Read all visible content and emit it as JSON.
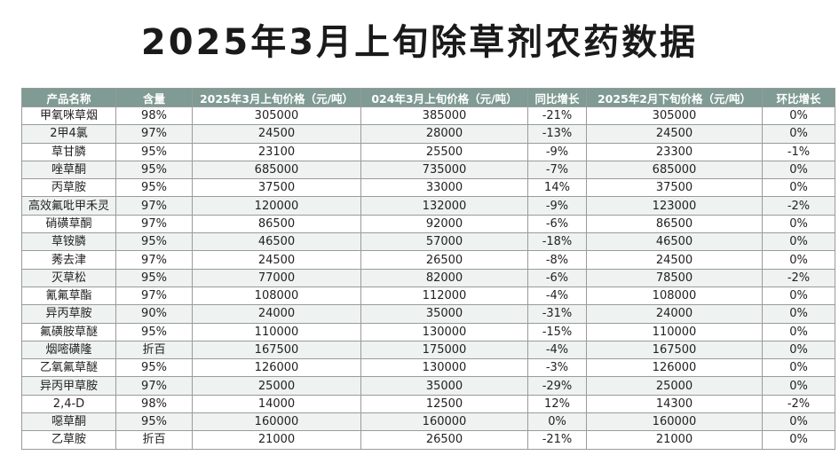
{
  "title": "2025年3月上旬除草剂农药数据",
  "table": {
    "headers": [
      "产品名称",
      "含量",
      "2025年3月上旬价格（元/吨）",
      "024年3月上旬价格（元/吨）",
      "同比增长",
      "2025年2月下旬价格（元/吨）",
      "环比增长"
    ],
    "rows": [
      [
        "甲氧咪草烟",
        "98%",
        "305000",
        "385000",
        "-21%",
        "305000",
        "0%"
      ],
      [
        "2甲4氯",
        "97%",
        "24500",
        "28000",
        "-13%",
        "24500",
        "0%"
      ],
      [
        "草甘膦",
        "95%",
        "23100",
        "25500",
        "-9%",
        "23300",
        "-1%"
      ],
      [
        "唑草酮",
        "95%",
        "685000",
        "735000",
        "-7%",
        "685000",
        "0%"
      ],
      [
        "丙草胺",
        "95%",
        "37500",
        "33000",
        "14%",
        "37500",
        "0%"
      ],
      [
        "高效氟吡甲禾灵",
        "97%",
        "120000",
        "132000",
        "-9%",
        "123000",
        "-2%"
      ],
      [
        "硝磺草酮",
        "97%",
        "86500",
        "92000",
        "-6%",
        "86500",
        "0%"
      ],
      [
        "草铵膦",
        "95%",
        "46500",
        "57000",
        "-18%",
        "46500",
        "0%"
      ],
      [
        "莠去津",
        "97%",
        "24500",
        "26500",
        "-8%",
        "24500",
        "0%"
      ],
      [
        "灭草松",
        "95%",
        "77000",
        "82000",
        "-6%",
        "78500",
        "-2%"
      ],
      [
        "氰氟草酯",
        "97%",
        "108000",
        "112000",
        "-4%",
        "108000",
        "0%"
      ],
      [
        "异丙草胺",
        "90%",
        "24000",
        "35000",
        "-31%",
        "24000",
        "0%"
      ],
      [
        "氟磺胺草醚",
        "95%",
        "110000",
        "130000",
        "-15%",
        "110000",
        "0%"
      ],
      [
        "烟嘧磺隆",
        "折百",
        "167500",
        "175000",
        "-4%",
        "167500",
        "0%"
      ],
      [
        "乙氧氟草醚",
        "95%",
        "126000",
        "130000",
        "-3%",
        "126000",
        "0%"
      ],
      [
        "异丙甲草胺",
        "97%",
        "25000",
        "35000",
        "-29%",
        "25000",
        "0%"
      ],
      [
        "2,4-D",
        "98%",
        "14000",
        "12500",
        "12%",
        "14300",
        "-2%"
      ],
      [
        "噁草酮",
        "95%",
        "160000",
        "160000",
        "0%",
        "160000",
        "0%"
      ],
      [
        "乙草胺",
        "折百",
        "21000",
        "26500",
        "-21%",
        "21000",
        "0%"
      ]
    ]
  },
  "colors": {
    "header_bg": "#7f9b93",
    "header_text": "#ffffff",
    "alt_row_bg": "#eef2f1",
    "border": "#9a9a9a",
    "title_text": "#1a1a1a"
  }
}
